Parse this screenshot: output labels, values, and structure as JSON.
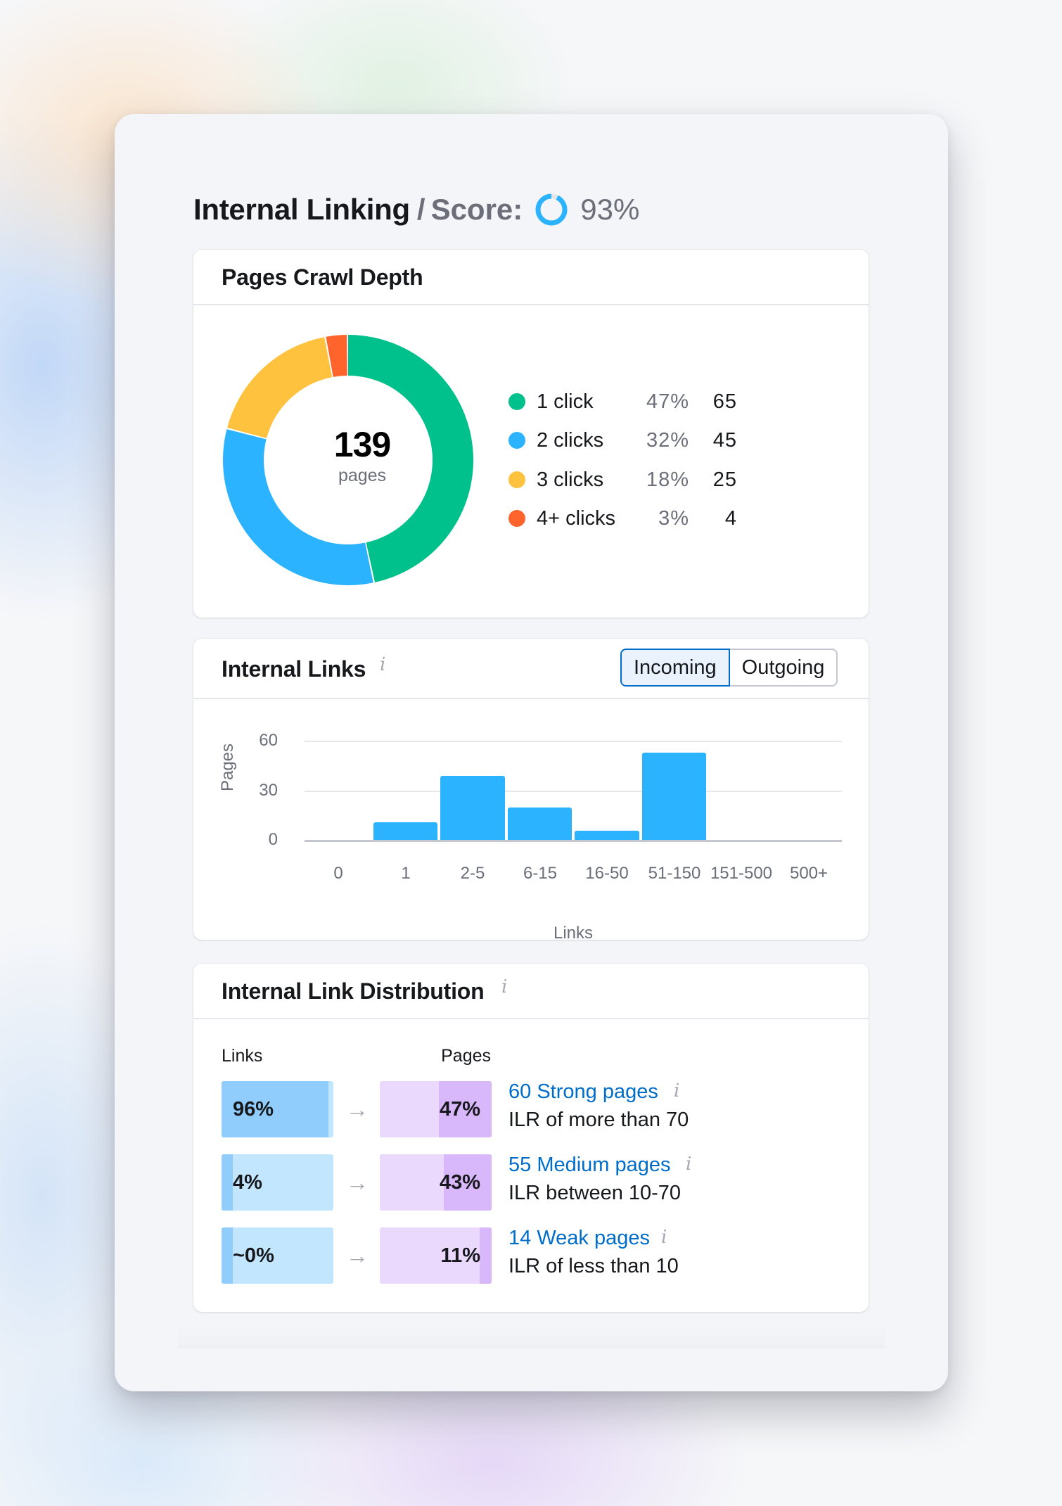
{
  "header": {
    "title": "Internal Linking",
    "separator": "/",
    "score_label": "Score:",
    "score_value": "93%",
    "score_percent": 93,
    "score_color": "#2bb3ff"
  },
  "crawl_depth": {
    "title": "Pages Crawl Depth",
    "total": "139",
    "total_label": "pages",
    "legend": [
      {
        "label": "1 click",
        "pct": "47%",
        "count": "65",
        "color": "#00c08b"
      },
      {
        "label": "2 clicks",
        "pct": "32%",
        "count": "45",
        "color": "#2bb3ff"
      },
      {
        "label": "3 clicks",
        "pct": "18%",
        "count": "25",
        "color": "#ffc23e"
      },
      {
        "label": "4+ clicks",
        "pct": "3%",
        "count": "4",
        "color": "#ff642d"
      }
    ]
  },
  "internal_links": {
    "title": "Internal Links",
    "info_icon": "i",
    "toggle": {
      "incoming": "Incoming",
      "outgoing": "Outgoing",
      "selected": "Incoming"
    },
    "y_label": "Pages",
    "x_label": "Links",
    "y_ticks": [
      "60",
      "30",
      "0"
    ],
    "x_ticks": [
      "0",
      "1",
      "2-5",
      "6-15",
      "16-50",
      "51-150",
      "151-500",
      "500+"
    ]
  },
  "distribution": {
    "title": "Internal Link Distribution",
    "info_icon": "i",
    "col_links": "Links",
    "col_pages": "Pages",
    "arrow": "→",
    "rows": [
      {
        "links_pct": "96%",
        "links_fill": 96,
        "pages_pct": "47%",
        "pages_fill": 47,
        "link_label": "60 Strong pages",
        "desc": "ILR of more than 70"
      },
      {
        "links_pct": "4%",
        "links_fill": 4,
        "pages_pct": "43%",
        "pages_fill": 43,
        "link_label": "55 Medium pages",
        "desc": "ILR between 10-70"
      },
      {
        "links_pct": "~0%",
        "links_fill": 4,
        "pages_pct": "11%",
        "pages_fill": 11,
        "link_label": "14 Weak pages",
        "desc": "ILR of less than 10"
      }
    ]
  },
  "chart_data": [
    {
      "type": "pie",
      "title": "Pages Crawl Depth",
      "center_label": "139 pages",
      "categories": [
        "1 click",
        "2 clicks",
        "3 clicks",
        "4+ clicks"
      ],
      "values": [
        65,
        45,
        25,
        4
      ],
      "percentages": [
        47,
        32,
        18,
        3
      ],
      "colors": [
        "#00c08b",
        "#2bb3ff",
        "#ffc23e",
        "#ff642d"
      ],
      "legend_position": "right"
    },
    {
      "type": "bar",
      "title": "Internal Links",
      "categories": [
        "0",
        "1",
        "2-5",
        "6-15",
        "16-50",
        "51-150",
        "151-500",
        "500+"
      ],
      "values": [
        0,
        11,
        39,
        20,
        6,
        53,
        0,
        0
      ],
      "xlabel": "Links",
      "ylabel": "Pages",
      "ylim": [
        0,
        60
      ],
      "yticks": [
        0,
        30,
        60
      ],
      "grid": true,
      "color": "#2bb3ff"
    }
  ]
}
